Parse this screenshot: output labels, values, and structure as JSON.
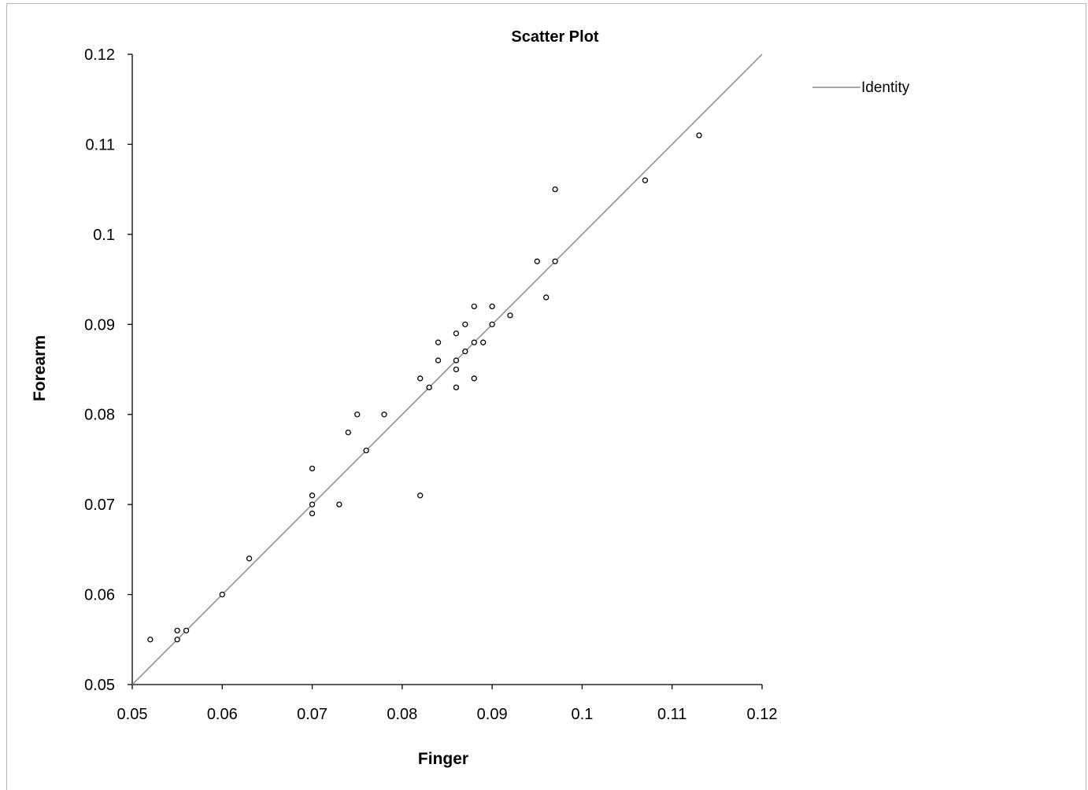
{
  "chart_data": {
    "type": "scatter",
    "title": "Scatter Plot",
    "xlabel": "Finger",
    "ylabel": "Forearm",
    "xlim": [
      0.05,
      0.12
    ],
    "ylim": [
      0.05,
      0.12
    ],
    "x_ticks": [
      "0.05",
      "0.06",
      "0.07",
      "0.08",
      "0.09",
      "0.1",
      "0.11",
      "0.12"
    ],
    "y_ticks": [
      "0.05",
      "0.06",
      "0.07",
      "0.08",
      "0.09",
      "0.1",
      "0.11",
      "0.12"
    ],
    "grid": false,
    "legend": {
      "placement": "top-right",
      "entries": [
        "Identity"
      ]
    },
    "reference_line": {
      "name": "Identity",
      "from": [
        0.05,
        0.05
      ],
      "to": [
        0.12,
        0.12
      ],
      "color": "#8c8c8c"
    },
    "marker_color": "#000000",
    "points": [
      [
        0.052,
        0.055
      ],
      [
        0.055,
        0.056
      ],
      [
        0.055,
        0.055
      ],
      [
        0.056,
        0.056
      ],
      [
        0.06,
        0.06
      ],
      [
        0.063,
        0.064
      ],
      [
        0.07,
        0.074
      ],
      [
        0.07,
        0.071
      ],
      [
        0.07,
        0.07
      ],
      [
        0.07,
        0.069
      ],
      [
        0.073,
        0.07
      ],
      [
        0.074,
        0.078
      ],
      [
        0.075,
        0.08
      ],
      [
        0.076,
        0.076
      ],
      [
        0.078,
        0.08
      ],
      [
        0.082,
        0.084
      ],
      [
        0.082,
        0.071
      ],
      [
        0.083,
        0.083
      ],
      [
        0.084,
        0.088
      ],
      [
        0.084,
        0.086
      ],
      [
        0.086,
        0.089
      ],
      [
        0.086,
        0.086
      ],
      [
        0.086,
        0.085
      ],
      [
        0.086,
        0.083
      ],
      [
        0.087,
        0.09
      ],
      [
        0.087,
        0.087
      ],
      [
        0.088,
        0.092
      ],
      [
        0.088,
        0.088
      ],
      [
        0.088,
        0.084
      ],
      [
        0.089,
        0.088
      ],
      [
        0.09,
        0.092
      ],
      [
        0.09,
        0.09
      ],
      [
        0.092,
        0.091
      ],
      [
        0.095,
        0.097
      ],
      [
        0.096,
        0.093
      ],
      [
        0.097,
        0.105
      ],
      [
        0.097,
        0.097
      ],
      [
        0.107,
        0.106
      ],
      [
        0.113,
        0.111
      ]
    ]
  }
}
